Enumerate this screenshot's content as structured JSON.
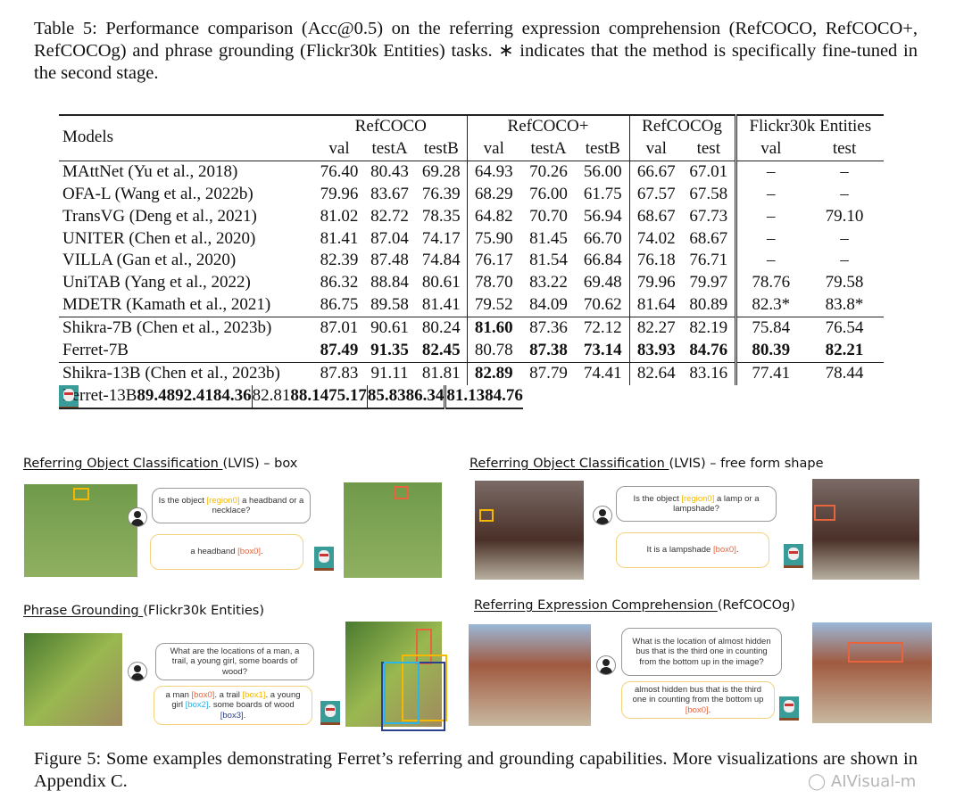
{
  "table_caption": "Table 5: Performance comparison (Acc@0.5) on the referring expression comprehension (RefCOCO, RefCOCO+, RefCOCOg) and phrase grounding (Flickr30k Entities) tasks. ∗ indicates that the method is specifically fine-tuned in the second stage.",
  "table": {
    "models_header": "Models",
    "groups": [
      "RefCOCO",
      "RefCOCO+",
      "RefCOCOg",
      "Flickr30k Entities"
    ],
    "subheaders": [
      "val",
      "testA",
      "testB",
      "val",
      "testA",
      "testB",
      "val",
      "test",
      "val",
      "test"
    ],
    "rows": [
      {
        "model": "MAttNet (Yu et al., 2018)",
        "v": [
          "76.40",
          "80.43",
          "69.28",
          "64.93",
          "70.26",
          "56.00",
          "66.67",
          "67.01",
          "–",
          "–"
        ],
        "bold": []
      },
      {
        "model": "OFA-L (Wang et al., 2022b)",
        "v": [
          "79.96",
          "83.67",
          "76.39",
          "68.29",
          "76.00",
          "61.75",
          "67.57",
          "67.58",
          "–",
          "–"
        ],
        "bold": []
      },
      {
        "model": "TransVG (Deng et al., 2021)",
        "v": [
          "81.02",
          "82.72",
          "78.35",
          "64.82",
          "70.70",
          "56.94",
          "68.67",
          "67.73",
          "–",
          "79.10"
        ],
        "bold": []
      },
      {
        "model": "UNITER (Chen et al., 2020)",
        "v": [
          "81.41",
          "87.04",
          "74.17",
          "75.90",
          "81.45",
          "66.70",
          "74.02",
          "68.67",
          "–",
          "–"
        ],
        "bold": []
      },
      {
        "model": "VILLA (Gan et al., 2020)",
        "v": [
          "82.39",
          "87.48",
          "74.84",
          "76.17",
          "81.54",
          "66.84",
          "76.18",
          "76.71",
          "–",
          "–"
        ],
        "bold": []
      },
      {
        "model": "UniTAB (Yang et al., 2022)",
        "v": [
          "86.32",
          "88.84",
          "80.61",
          "78.70",
          "83.22",
          "69.48",
          "79.96",
          "79.97",
          "78.76",
          "79.58"
        ],
        "bold": []
      },
      {
        "model": "MDETR (Kamath et al., 2021)",
        "v": [
          "86.75",
          "89.58",
          "81.41",
          "79.52",
          "84.09",
          "70.62",
          "81.64",
          "80.89",
          "82.3*",
          "83.8*"
        ],
        "bold": []
      },
      {
        "model": "Shikra-7B (Chen et al., 2023b)",
        "v": [
          "87.01",
          "90.61",
          "80.24",
          "81.60",
          "87.36",
          "72.12",
          "82.27",
          "82.19",
          "75.84",
          "76.54"
        ],
        "bold": [
          3
        ]
      },
      {
        "model": "Ferret-7B",
        "v": [
          "87.49",
          "91.35",
          "82.45",
          "80.78",
          "87.38",
          "73.14",
          "83.93",
          "84.76",
          "80.39",
          "82.21"
        ],
        "bold": [
          0,
          1,
          2,
          4,
          5,
          6,
          7,
          8,
          9
        ]
      },
      {
        "model": "Shikra-13B (Chen et al., 2023b)",
        "v": [
          "87.83",
          "91.11",
          "81.81",
          "82.89",
          "87.79",
          "74.41",
          "82.64",
          "83.16",
          "77.41",
          "78.44"
        ],
        "bold": [
          3
        ]
      },
      {
        "model": "Ferret-13B",
        "v": [
          "89.48",
          "92.41",
          "84.36",
          "82.81",
          "88.14",
          "75.17",
          "85.83",
          "86.34",
          "81.13",
          "84.76"
        ],
        "bold": [
          0,
          1,
          2,
          4,
          5,
          6,
          7,
          8,
          9
        ]
      }
    ]
  },
  "colors": {
    "region": "#f5b800",
    "box0": "#e8643c",
    "box1": "#f5b800",
    "box2": "#2bb5e8",
    "box3": "#2a3f8f"
  },
  "panels": [
    {
      "title_u": "Referring Object Classification ",
      "title_rest": "(LVIS) – box",
      "q": [
        {
          "t": "Is the object "
        },
        {
          "t": "[region0]",
          "c": "region"
        },
        {
          "t": " a headband or a necklace?"
        }
      ],
      "a": [
        {
          "t": "a headband "
        },
        {
          "t": "[box0]",
          "c": "box0"
        },
        {
          "t": "."
        }
      ]
    },
    {
      "title_u": "Referring Object Classification ",
      "title_rest": "(LVIS) – free form shape",
      "q": [
        {
          "t": "Is the object "
        },
        {
          "t": "[region0]",
          "c": "region"
        },
        {
          "t": " a lamp or a lampshade?"
        }
      ],
      "a": [
        {
          "t": "It is a lampshade "
        },
        {
          "t": "[box0]",
          "c": "box0"
        },
        {
          "t": "."
        }
      ]
    },
    {
      "title_u": "Phrase Grounding ",
      "title_rest": "(Flickr30k Entities)",
      "q": [
        {
          "t": "What are the locations of a man, a trail, a young girl, some boards of wood?"
        }
      ],
      "a": [
        {
          "t": "a man "
        },
        {
          "t": "[box0]",
          "c": "box0"
        },
        {
          "t": ". a trail "
        },
        {
          "t": "[box1]",
          "c": "box1"
        },
        {
          "t": ". a young girl "
        },
        {
          "t": "[box2]",
          "c": "box2"
        },
        {
          "t": ". some boards of wood "
        },
        {
          "t": "[box3]",
          "c": "box3"
        },
        {
          "t": "."
        }
      ]
    },
    {
      "title_u": "Referring Expression Comprehension ",
      "title_rest": "(RefCOCOg)",
      "q": [
        {
          "t": "What is the location of almost hidden bus that is the third one in counting from the bottom up in the image?"
        }
      ],
      "a": [
        {
          "t": "almost hidden bus that is the third one in counting from the bottom up "
        },
        {
          "t": "[box0]",
          "c": "box0"
        },
        {
          "t": "."
        }
      ]
    }
  ],
  "figure_caption": "Figure 5: Some examples demonstrating Ferret’s referring and grounding capabilities. More visualizations are shown in Appendix C.",
  "watermark": "AIVisual-m"
}
